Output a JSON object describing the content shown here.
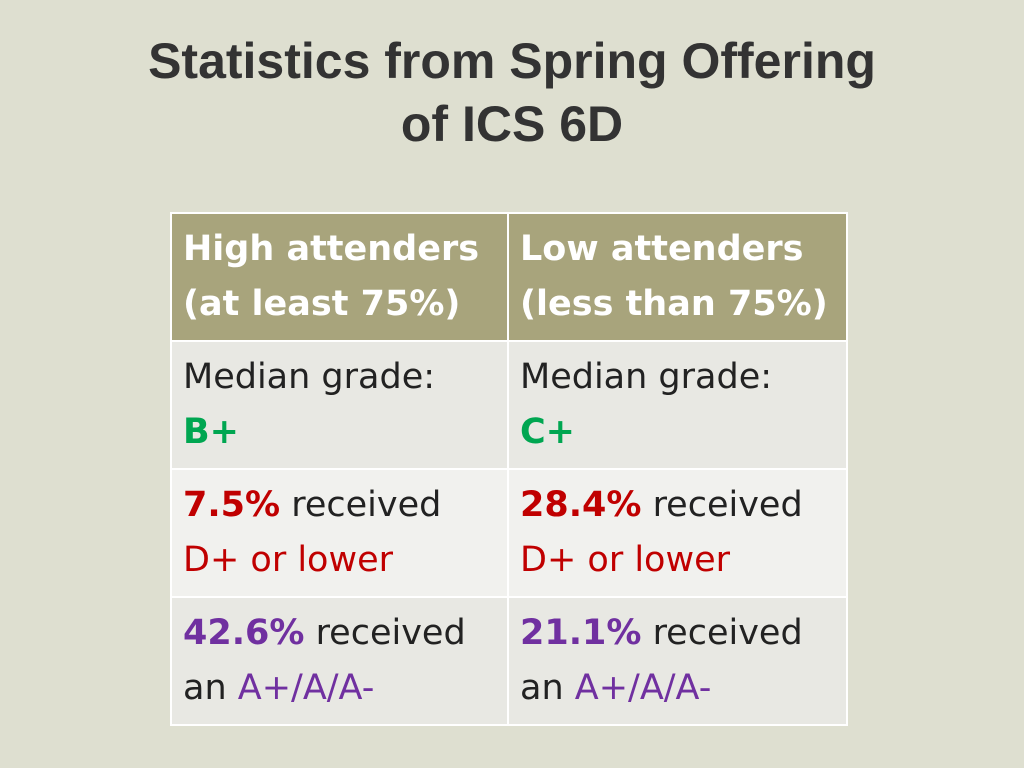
{
  "title": {
    "line1": "Statistics from Spring Offering",
    "line2": "of ICS 6D"
  },
  "table": {
    "headers": [
      {
        "line1": "High attenders",
        "line2": "(at least 75%)"
      },
      {
        "line1": "Low attenders",
        "line2": "(less than 75%)"
      }
    ],
    "rows": {
      "median": [
        {
          "label": "Median grade:",
          "value": "B+"
        },
        {
          "label": "Median grade:",
          "value": "C+"
        }
      ],
      "low_grades": [
        {
          "percent": "7.5%",
          "text": " received",
          "line2": "D+ or lower"
        },
        {
          "percent": "28.4%",
          "text": " received",
          "line2": "D+ or lower"
        }
      ],
      "high_grades": [
        {
          "percent": "42.6%",
          "text": " received",
          "prefix": "an ",
          "grades": "A+/A/A-"
        },
        {
          "percent": "21.1%",
          "text": " received",
          "prefix": "an ",
          "grades": "A+/A/A-"
        }
      ]
    }
  },
  "colors": {
    "background": "#dedfd0",
    "header_fill": "#a8a47c",
    "median_grade": "#00a651",
    "low_grade": "#c00000",
    "high_grade": "#7030a0"
  }
}
